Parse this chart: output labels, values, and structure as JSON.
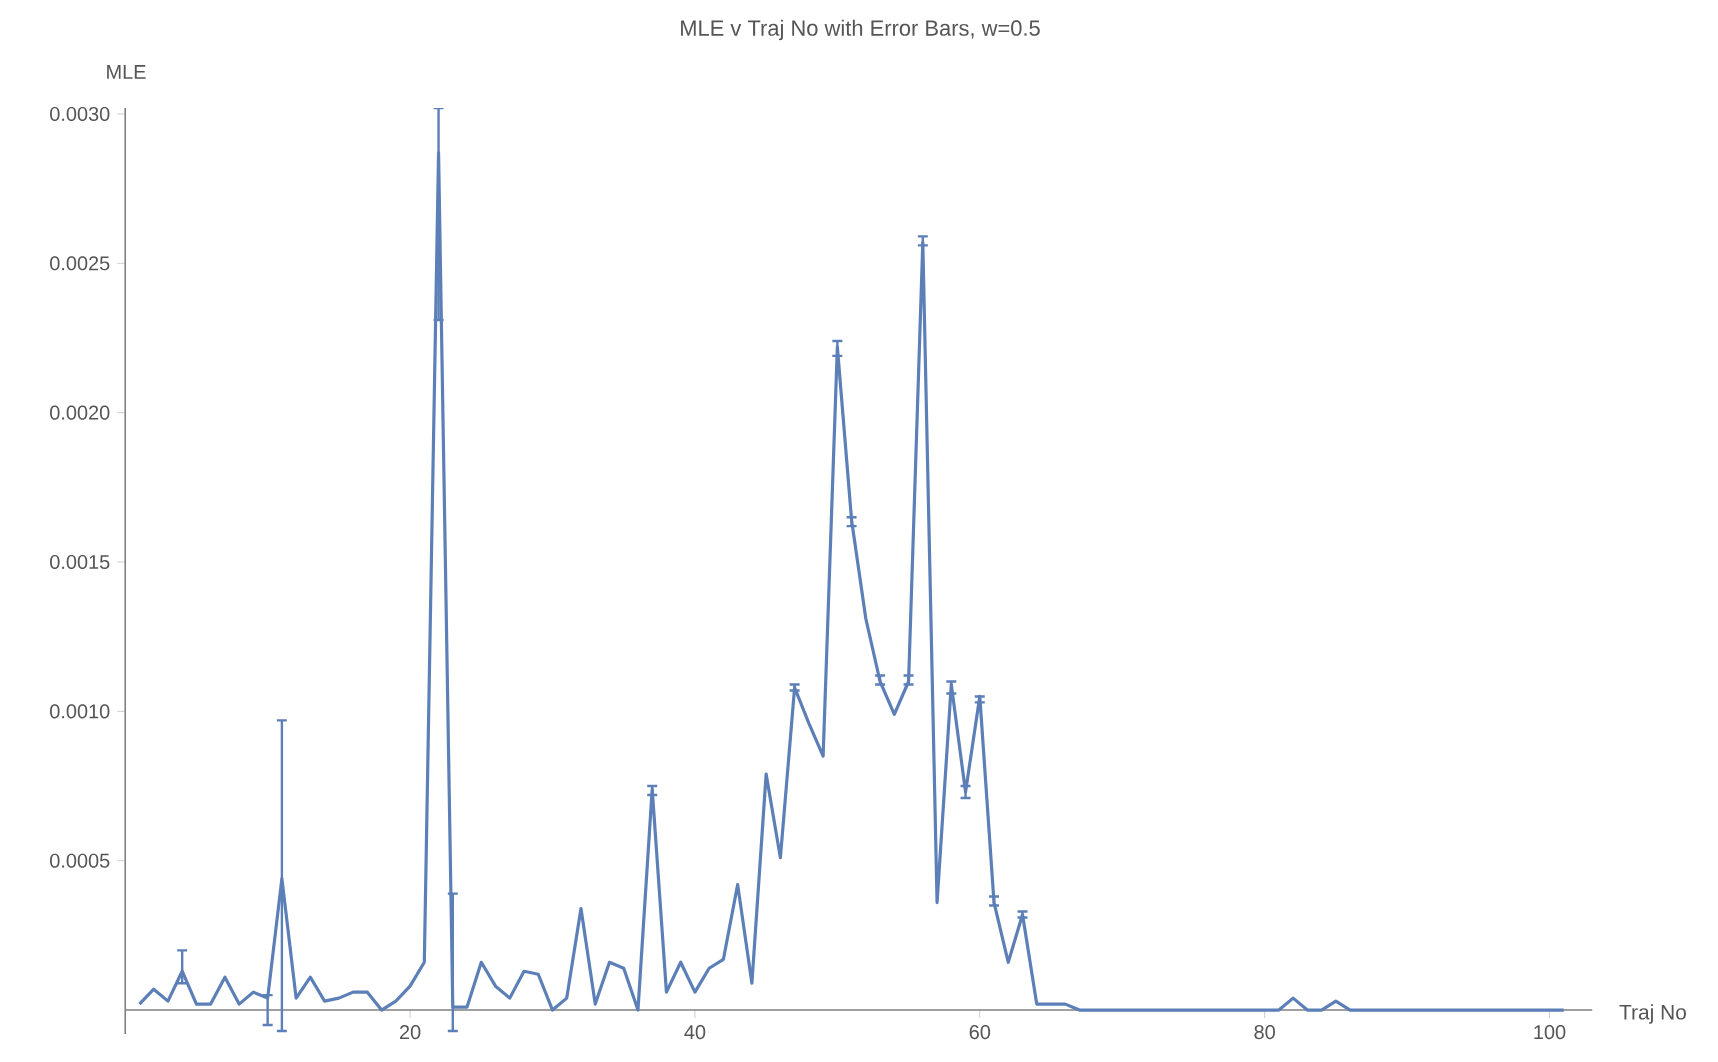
{
  "chart_data": {
    "type": "line",
    "title": "MLE v Traj No with Error Bars, w=0.5",
    "xlabel": "Traj No",
    "ylabel": "MLE",
    "x": [
      1,
      2,
      3,
      4,
      5,
      6,
      7,
      8,
      9,
      10,
      11,
      12,
      13,
      14,
      15,
      16,
      17,
      18,
      19,
      20,
      21,
      22,
      23,
      24,
      25,
      26,
      27,
      28,
      29,
      30,
      31,
      32,
      33,
      34,
      35,
      36,
      37,
      38,
      39,
      40,
      41,
      42,
      43,
      44,
      45,
      46,
      47,
      48,
      49,
      50,
      51,
      52,
      53,
      54,
      55,
      56,
      57,
      58,
      59,
      60,
      61,
      62,
      63,
      64,
      65,
      66,
      67,
      68,
      69,
      70,
      71,
      72,
      73,
      74,
      75,
      76,
      77,
      78,
      79,
      80,
      81,
      82,
      83,
      84,
      85,
      86,
      87,
      88,
      89,
      90,
      91,
      92,
      93,
      94,
      95,
      96,
      97,
      98,
      99,
      100,
      101
    ],
    "series": [
      {
        "color": "#5b7fb6",
        "values": [
          2e-05,
          7e-05,
          3e-05,
          0.00013,
          2e-05,
          2e-05,
          0.00011,
          2e-05,
          6e-05,
          4e-05,
          0.00044,
          4e-05,
          0.00011,
          3e-05,
          4e-05,
          6e-05,
          6e-05,
          0.0,
          3e-05,
          8e-05,
          0.00016,
          0.00287,
          1e-05,
          1e-05,
          0.00016,
          8e-05,
          4e-05,
          0.00013,
          0.00012,
          0.0,
          4e-05,
          0.00034,
          2e-05,
          0.00016,
          0.00014,
          0.0,
          0.00074,
          6e-05,
          0.00016,
          6e-05,
          0.00014,
          0.00017,
          0.00042,
          9e-05,
          0.00079,
          0.00051,
          0.00108,
          0.00096,
          0.00085,
          0.00222,
          0.00164,
          0.00131,
          0.0011,
          0.00099,
          0.0011,
          0.00257,
          0.00036,
          0.00109,
          0.00073,
          0.00105,
          0.00036,
          0.00016,
          0.00032,
          2e-05,
          2e-05,
          2e-05,
          0.0,
          0.0,
          0.0,
          0.0,
          0.0,
          0.0,
          0.0,
          0.0,
          0.0,
          0.0,
          0.0,
          0.0,
          0.0,
          0.0,
          0.0,
          4e-05,
          0.0,
          0.0,
          3e-05,
          0.0,
          0.0,
          0.0,
          0.0,
          0.0,
          0.0,
          0.0,
          0.0,
          0.0,
          0.0,
          0.0,
          0.0,
          0.0,
          0.0,
          0.0,
          0.0
        ],
        "errors": [
          null,
          null,
          null,
          [
            9e-05,
            0.0002
          ],
          null,
          null,
          null,
          null,
          null,
          [
            -5e-05,
            5e-05
          ],
          [
            -7e-05,
            0.00097
          ],
          null,
          null,
          null,
          null,
          null,
          null,
          null,
          null,
          null,
          null,
          [
            0.00231,
            0.00302
          ],
          [
            -7e-05,
            0.00039
          ],
          null,
          null,
          null,
          null,
          null,
          null,
          null,
          null,
          null,
          null,
          null,
          null,
          null,
          [
            0.00072,
            0.00075
          ],
          null,
          null,
          null,
          null,
          null,
          null,
          null,
          null,
          null,
          [
            0.00107,
            0.00109
          ],
          null,
          null,
          [
            0.00219,
            0.00224
          ],
          [
            0.00162,
            0.00165
          ],
          null,
          [
            0.00109,
            0.00112
          ],
          null,
          [
            0.00109,
            0.00112
          ],
          [
            0.00256,
            0.00259
          ],
          null,
          [
            0.00106,
            0.0011
          ],
          [
            0.00071,
            0.00075
          ],
          [
            0.00103,
            0.00105
          ],
          [
            0.00035,
            0.00038
          ],
          null,
          [
            0.00031,
            0.00033
          ],
          null,
          null,
          null,
          null,
          null,
          null,
          null,
          null,
          null,
          null,
          null,
          null,
          null,
          null,
          null,
          null,
          null,
          null,
          null,
          null,
          null,
          null,
          null,
          null,
          null,
          null,
          null,
          null,
          null,
          null,
          null,
          null,
          null,
          null,
          null,
          null,
          null,
          null
        ]
      }
    ],
    "xlim": [
      0,
      103
    ],
    "ylim": [
      -8e-05,
      0.00302
    ],
    "xticks": [
      20,
      40,
      60,
      80,
      100
    ],
    "yticks": [
      {
        "value": 0.0005,
        "label": "0.0005"
      },
      {
        "value": 0.001,
        "label": "0.0010"
      },
      {
        "value": 0.0015,
        "label": "0.0015"
      },
      {
        "value": 0.002,
        "label": "0.0020"
      },
      {
        "value": 0.0025,
        "label": "0.0025"
      },
      {
        "value": 0.003,
        "label": "0.0030"
      }
    ],
    "grid": false,
    "marker": "none",
    "line_style": "solid"
  }
}
